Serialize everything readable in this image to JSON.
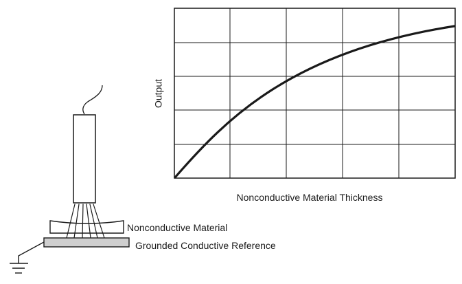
{
  "graph": {
    "y_axis_label": "Output",
    "x_axis_label": "Nonconductive Material Thickness",
    "grid": true,
    "grid_columns": 5,
    "grid_rows": 5,
    "curve_shape": "rising, concave-down (output increases with thickness at a decreasing rate)"
  },
  "apparatus": {
    "layer_label": "Nonconductive Material",
    "reference_label": "Grounded Conductive Reference",
    "colors": {
      "line": "#1a1a1a",
      "reference_fill": "#cfcfcf"
    }
  }
}
